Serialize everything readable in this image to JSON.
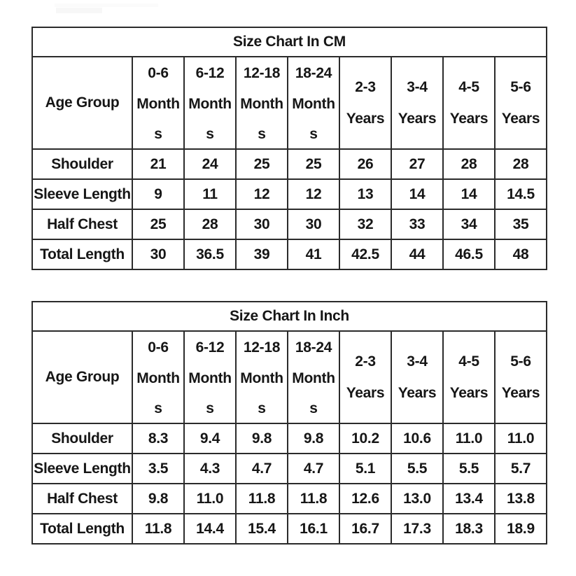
{
  "page": {
    "background": "#ffffff",
    "text_color": "#161616",
    "border_color": "#2b2b2b"
  },
  "chart_data": [
    {
      "type": "table",
      "title": "Size Chart In CM",
      "corner_header": "Age Group",
      "column_headers": [
        "0-6 Months",
        "6-12 Months",
        "12-18 Months",
        "18-24 Months",
        "2-3 Years",
        "3-4 Years",
        "4-5 Years",
        "5-6 Years"
      ],
      "row_headers": [
        "Shoulder",
        "Sleeve Length",
        "Half Chest",
        "Total Length"
      ],
      "rows": [
        [
          "21",
          "24",
          "25",
          "25",
          "26",
          "27",
          "28",
          "28"
        ],
        [
          "9",
          "11",
          "12",
          "12",
          "13",
          "14",
          "14",
          "14.5"
        ],
        [
          "25",
          "28",
          "30",
          "30",
          "32",
          "33",
          "34",
          "35"
        ],
        [
          "30",
          "36.5",
          "39",
          "41",
          "42.5",
          "44",
          "46.5",
          "48"
        ]
      ]
    },
    {
      "type": "table",
      "title": "Size Chart In Inch",
      "corner_header": "Age Group",
      "column_headers": [
        "0-6 Months",
        "6-12 Months",
        "12-18 Months",
        "18-24 Months",
        "2-3 Years",
        "3-4 Years",
        "4-5 Years",
        "5-6 Years"
      ],
      "row_headers": [
        "Shoulder",
        "Sleeve Length",
        "Half Chest",
        "Total Length"
      ],
      "rows": [
        [
          "8.3",
          "9.4",
          "9.8",
          "9.8",
          "10.2",
          "10.6",
          "11.0",
          "11.0"
        ],
        [
          "3.5",
          "4.3",
          "4.7",
          "4.7",
          "5.1",
          "5.5",
          "5.5",
          "5.7"
        ],
        [
          "9.8",
          "11.0",
          "11.8",
          "11.8",
          "12.6",
          "13.0",
          "13.4",
          "13.8"
        ],
        [
          "11.8",
          "14.4",
          "15.4",
          "16.1",
          "16.7",
          "17.3",
          "18.3",
          "18.9"
        ]
      ]
    }
  ]
}
